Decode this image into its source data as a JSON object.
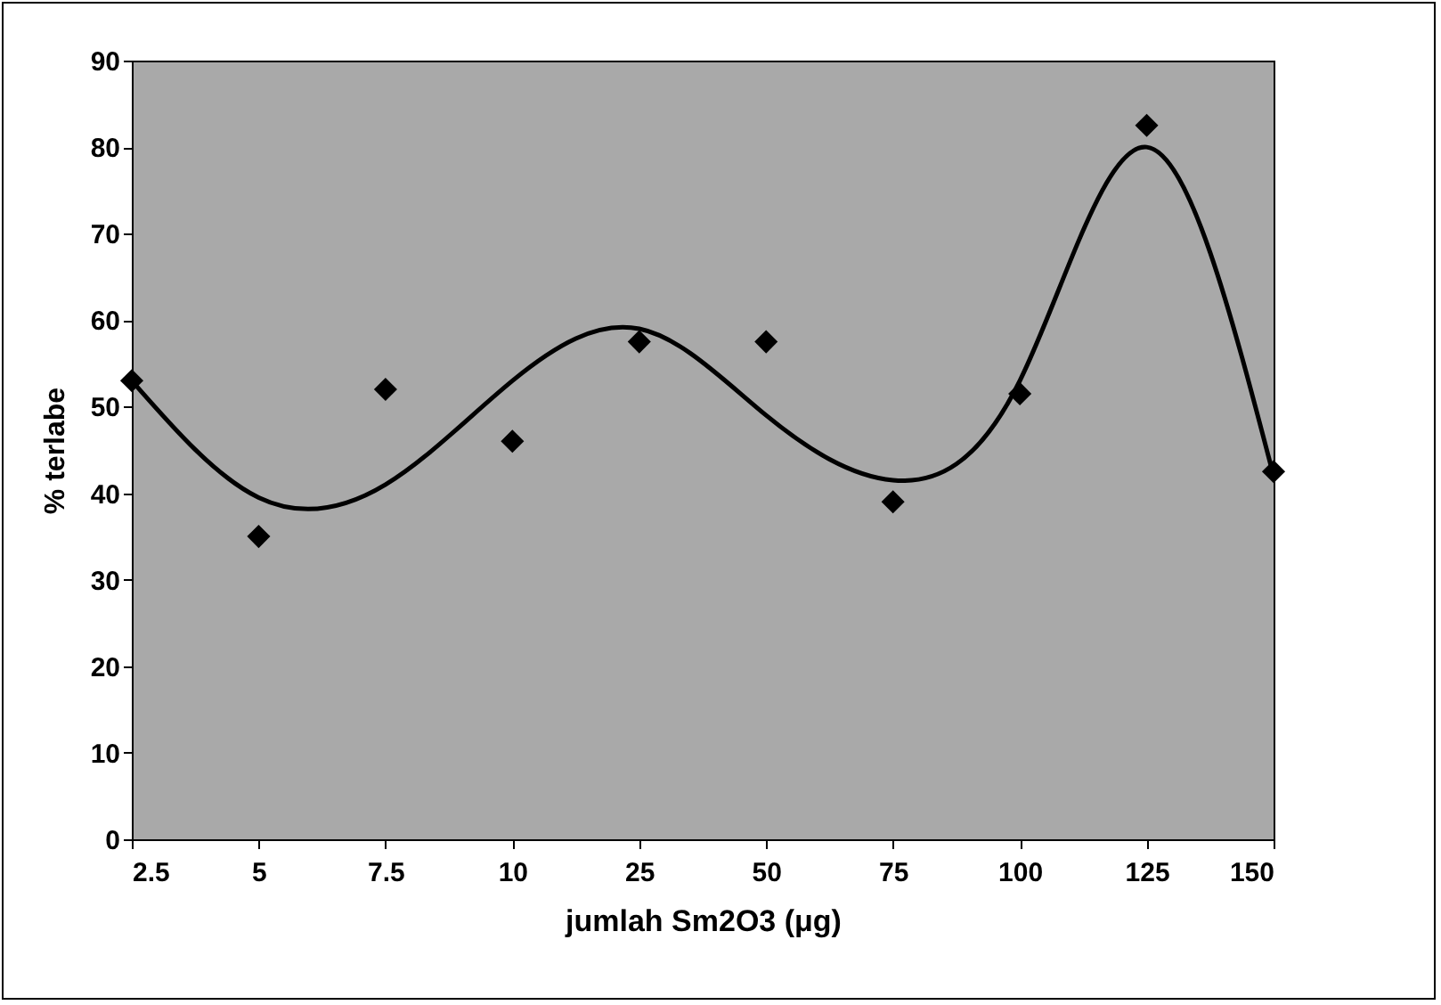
{
  "chart_data": {
    "type": "scatter",
    "xlabel": "jumlah Sm2O3 (μg)",
    "ylabel": "% terlabe",
    "categories": [
      "2.5",
      "5",
      "7.5",
      "10",
      "25",
      "50",
      "75",
      "100",
      "125",
      "150"
    ],
    "series": [
      {
        "color": "#000000",
        "marker": "diamond",
        "values": [
          53,
          35,
          52,
          46,
          57.5,
          57.5,
          39,
          51.5,
          82.5,
          42.5
        ]
      },
      {
        "type": "line",
        "color": "#000000",
        "marker": "none",
        "line_style": "solid",
        "values": [
          53,
          39.5,
          41,
          53,
          59,
          49,
          41.5,
          53,
          80,
          42
        ]
      }
    ],
    "ylim": [
      0,
      90
    ],
    "yticks": [
      0,
      10,
      20,
      30,
      40,
      50,
      60,
      70,
      80,
      90
    ],
    "grid": false
  }
}
